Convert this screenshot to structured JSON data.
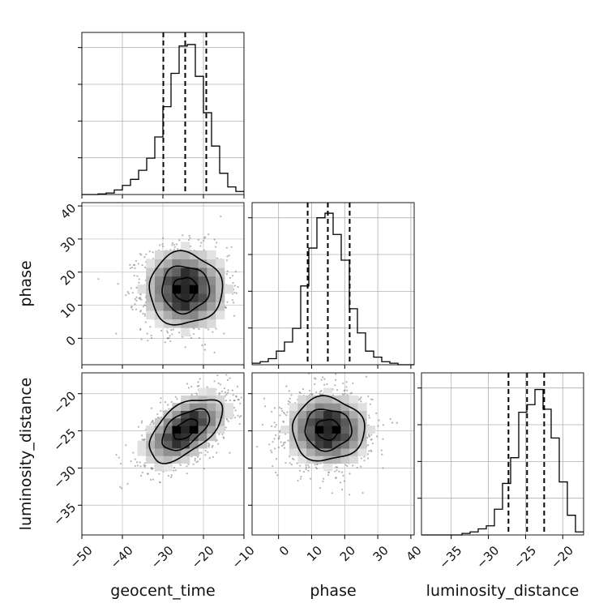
{
  "chart_data": {
    "type": "corner",
    "grid": true,
    "parameters": [
      {
        "name": "geocent_time",
        "range": [
          -50,
          -10
        ],
        "ticks": [
          -50,
          -40,
          -30,
          -20,
          -10
        ],
        "tick_labels": [
          "−50",
          "−40",
          "−30",
          "−20",
          "−10"
        ],
        "quantiles": [
          -29.9,
          -24.5,
          -19.3
        ]
      },
      {
        "name": "phase",
        "range": [
          -8,
          41
        ],
        "ticks": [
          0,
          10,
          20,
          30,
          40
        ],
        "tick_labels": [
          "0",
          "10",
          "20",
          "30",
          "40"
        ],
        "quantiles": [
          8.8,
          14.9,
          21.5
        ]
      },
      {
        "name": "luminosity_distance",
        "range": [
          -39,
          -17.2
        ],
        "ticks": [
          -35,
          -30,
          -25,
          -20
        ],
        "tick_labels": [
          "−35",
          "−30",
          "−25",
          "−20"
        ],
        "quantiles": [
          -27.3,
          -24.8,
          -22.5
        ]
      }
    ],
    "histograms": [
      {
        "parameter": "geocent_time",
        "bin_edges": [
          -50,
          -48,
          -46,
          -44,
          -42,
          -40,
          -38,
          -36,
          -34,
          -32,
          -30,
          -28,
          -26,
          -24,
          -22,
          -20,
          -18,
          -16,
          -14,
          -12,
          -10
        ],
        "values": [
          0,
          0,
          0.004,
          0.01,
          0.03,
          0.06,
          0.1,
          0.16,
          0.24,
          0.38,
          0.58,
          0.8,
          0.98,
          0.99,
          0.78,
          0.54,
          0.32,
          0.14,
          0.05,
          0.02
        ]
      },
      {
        "parameter": "phase",
        "bin_edges": [
          -8,
          -5.55,
          -3.1,
          -0.65,
          1.8,
          4.25,
          6.7,
          9.15,
          11.6,
          14.05,
          16.5,
          18.95,
          21.4,
          23.85,
          26.3,
          28.75,
          31.2,
          33.65,
          36.1,
          38.55,
          41
        ],
        "values": [
          0.01,
          0.02,
          0.04,
          0.09,
          0.15,
          0.24,
          0.52,
          0.77,
          0.97,
          1.0,
          0.86,
          0.69,
          0.37,
          0.21,
          0.09,
          0.05,
          0.02,
          0.01,
          0,
          0
        ]
      },
      {
        "parameter": "luminosity_distance",
        "bin_edges": [
          -39,
          -37.91,
          -36.82,
          -35.73,
          -34.64,
          -33.55,
          -32.46,
          -31.37,
          -30.28,
          -29.19,
          -28.1,
          -27.01,
          -25.92,
          -24.83,
          -23.74,
          -22.65,
          -21.56,
          -20.47,
          -19.38,
          -18.29,
          -17.2
        ],
        "values": [
          0,
          0,
          0,
          0,
          0,
          0.01,
          0.02,
          0.04,
          0.06,
          0.17,
          0.34,
          0.51,
          0.81,
          0.86,
          0.96,
          0.83,
          0.64,
          0.35,
          0.13,
          0.02
        ]
      }
    ],
    "pairs": [
      {
        "x": "geocent_time",
        "y": "phase",
        "mean": [
          -24.5,
          14.9
        ],
        "sd": [
          5.3,
          6.4
        ],
        "correlation": 0
      },
      {
        "x": "geocent_time",
        "y": "luminosity_distance",
        "mean": [
          -24.5,
          -24.8
        ],
        "sd": [
          5.3,
          2.5
        ],
        "correlation": 0.55
      },
      {
        "x": "phase",
        "y": "luminosity_distance",
        "mean": [
          14.9,
          -24.8
        ],
        "sd": [
          6.4,
          2.5
        ],
        "correlation": 0
      }
    ]
  }
}
